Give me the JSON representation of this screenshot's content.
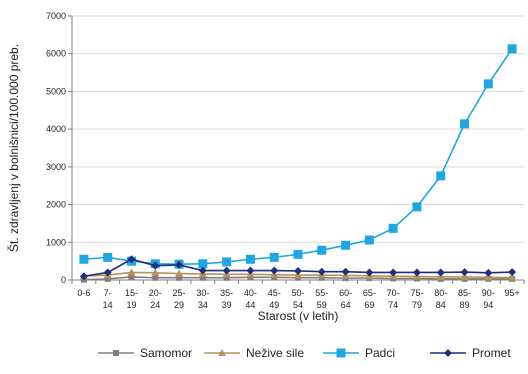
{
  "chart_data": {
    "type": "line",
    "title": "",
    "xlabel": "Starost (v letih)",
    "ylabel": "Št. zdravljenj v bolnišnici/100.000 preb.",
    "ylim": [
      0,
      7000
    ],
    "yticks": [
      "0",
      "1000",
      "2000",
      "3000",
      "4000",
      "5000",
      "6000",
      "7000"
    ],
    "categories": [
      [
        "0-6"
      ],
      [
        "7-",
        "14"
      ],
      [
        "15-",
        "19"
      ],
      [
        "20-",
        "24"
      ],
      [
        "25-",
        "29"
      ],
      [
        "30-",
        "34"
      ],
      [
        "35-",
        "39"
      ],
      [
        "40-",
        "44"
      ],
      [
        "45-",
        "49"
      ],
      [
        "50-",
        "54"
      ],
      [
        "55-",
        "59"
      ],
      [
        "60-",
        "64"
      ],
      [
        "65-",
        "69"
      ],
      [
        "70-",
        "74"
      ],
      [
        "75-",
        "79"
      ],
      [
        "80-",
        "84"
      ],
      [
        "85-",
        "89"
      ],
      [
        "90-",
        "94"
      ],
      [
        "95+"
      ]
    ],
    "grid": "horizontal",
    "legend_position": "bottom",
    "series": [
      {
        "name": "Samomor",
        "color": "#7f7f7f",
        "marker": "square",
        "values": [
          10,
          30,
          80,
          60,
          60,
          60,
          60,
          70,
          70,
          60,
          60,
          50,
          50,
          40,
          40,
          30,
          30,
          30,
          30
        ]
      },
      {
        "name": "Nežive sile",
        "color": "#b8925a",
        "marker": "triangle",
        "values": [
          100,
          130,
          200,
          190,
          170,
          160,
          150,
          150,
          140,
          130,
          130,
          120,
          110,
          100,
          90,
          80,
          80,
          70,
          60
        ]
      },
      {
        "name": "Padci",
        "color": "#1ea7e1",
        "marker": "square",
        "values": [
          550,
          600,
          500,
          430,
          420,
          430,
          480,
          550,
          600,
          680,
          790,
          920,
          1060,
          1370,
          1940,
          2760,
          4140,
          5200,
          6130
        ]
      },
      {
        "name": "Promet",
        "color": "#1f2f7a",
        "marker": "diamond",
        "values": [
          100,
          200,
          550,
          380,
          400,
          250,
          250,
          250,
          250,
          240,
          220,
          220,
          200,
          200,
          200,
          200,
          210,
          190,
          210
        ]
      }
    ]
  }
}
